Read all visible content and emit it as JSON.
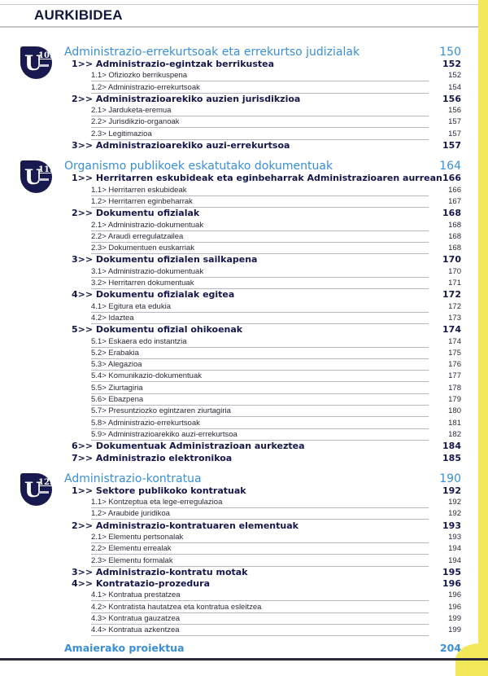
{
  "header": {
    "title": "AURKIBIDEA"
  },
  "colors": {
    "accent": "#3a8fd8",
    "navy": "#17194f",
    "yellow": "#f2e85a"
  },
  "units": [
    {
      "badge": {
        "letter": "U",
        "number": "10."
      },
      "title": "Administrazio-errekurtsoak eta errekurtso judizialak",
      "page": "150",
      "entries": [
        {
          "level": 1,
          "label": "1>> Administrazio-egintzak berrikustea",
          "page": "152"
        },
        {
          "level": 2,
          "label": "1.1> Ofiziozko berrikuspena",
          "page": "152"
        },
        {
          "level": 2,
          "label": "1.2> Administrazio-errekurtsoak",
          "page": "154"
        },
        {
          "level": 1,
          "label": "2>> Administrazioarekiko auzien jurisdikzioa",
          "page": "156"
        },
        {
          "level": 2,
          "label": "2.1> Jarduketa-eremua",
          "page": "156"
        },
        {
          "level": 2,
          "label": "2.2> Jurisdikzio-organoak",
          "page": "157"
        },
        {
          "level": 2,
          "label": "2.3> Legitimazioa",
          "page": "157"
        },
        {
          "level": 1,
          "label": "3>> Administrazioarekiko auzi-errekurtsoa",
          "page": "157"
        }
      ]
    },
    {
      "badge": {
        "letter": "U",
        "number": "11."
      },
      "title": "Organismo publikoek eskatutako dokumentuak",
      "page": "164",
      "entries": [
        {
          "level": 1,
          "label": "1>> Herritarren eskubideak eta eginbeharrak Administrazioaren aurrean",
          "page": "166"
        },
        {
          "level": 2,
          "label": "1.1> Herritarren eskubideak",
          "page": "166"
        },
        {
          "level": 2,
          "label": "1.2> Herritarren eginbeharrak",
          "page": "167"
        },
        {
          "level": 1,
          "label": "2>> Dokumentu ofizialak",
          "page": "168"
        },
        {
          "level": 2,
          "label": "2.1> Administrazio-dokumentuak",
          "page": "168"
        },
        {
          "level": 2,
          "label": "2.2> Araudi erregulatzailea",
          "page": "168"
        },
        {
          "level": 2,
          "label": "2.3> Dokumentuen euskarriak",
          "page": "168"
        },
        {
          "level": 1,
          "label": "3>> Dokumentu ofizialen sailkapena",
          "page": "170"
        },
        {
          "level": 2,
          "label": "3.1> Administrazio-dokumentuak",
          "page": "170"
        },
        {
          "level": 2,
          "label": "3.2> Herritarren dokumentuak",
          "page": "171"
        },
        {
          "level": 1,
          "label": "4>> Dokumentu ofizialak egitea",
          "page": "172"
        },
        {
          "level": 2,
          "label": "4.1> Egitura eta edukia",
          "page": "172"
        },
        {
          "level": 2,
          "label": "4.2> Idaztea",
          "page": "173"
        },
        {
          "level": 1,
          "label": "5>> Dokumentu ofizial ohikoenak",
          "page": "174"
        },
        {
          "level": 2,
          "label": "5.1> Eskaera edo instantzia",
          "page": "174"
        },
        {
          "level": 2,
          "label": "5.2> Erabakia",
          "page": "175"
        },
        {
          "level": 2,
          "label": "5.3> Alegazioa",
          "page": "176"
        },
        {
          "level": 2,
          "label": "5.4> Komunikazio-dokumentuak",
          "page": "177"
        },
        {
          "level": 2,
          "label": "5.5> Ziurtagiria",
          "page": "178"
        },
        {
          "level": 2,
          "label": "5.6> Ebazpena",
          "page": "179"
        },
        {
          "level": 2,
          "label": "5.7> Presuntziozko egintzaren ziurtagiria",
          "page": "180"
        },
        {
          "level": 2,
          "label": "5.8> Administrazio-errekurtsoak",
          "page": "181"
        },
        {
          "level": 2,
          "label": "5.9> Administrazioarekiko auzi-errekurtsoa",
          "page": "182"
        },
        {
          "level": 1,
          "label": "6>> Dokumentuak Administrazioan aurkeztea",
          "page": "184"
        },
        {
          "level": 1,
          "label": "7>> Administrazio elektronikoa",
          "page": "185"
        }
      ]
    },
    {
      "badge": {
        "letter": "U",
        "number": "12."
      },
      "title": "Administrazio-kontratua",
      "page": "190",
      "entries": [
        {
          "level": 1,
          "label": "1>> Sektore publikoko kontratuak",
          "page": "192"
        },
        {
          "level": 2,
          "label": "1.1> Kontzeptua eta lege-erregulazioa",
          "page": "192"
        },
        {
          "level": 2,
          "label": "1.2> Araubide juridikoa",
          "page": "192"
        },
        {
          "level": 1,
          "label": "2>> Administrazio-kontratuaren elementuak",
          "page": "193"
        },
        {
          "level": 2,
          "label": "2.1> Elementu pertsonalak",
          "page": "193"
        },
        {
          "level": 2,
          "label": "2.2> Elementu errealak",
          "page": "194"
        },
        {
          "level": 2,
          "label": "2.3> Elementu formalak",
          "page": "194"
        },
        {
          "level": 1,
          "label": "3>> Administrazio-kontratu motak",
          "page": "195"
        },
        {
          "level": 1,
          "label": "4>> Kontratazio-prozedura",
          "page": "196"
        },
        {
          "level": 2,
          "label": "4.1> Kontratua prestatzea",
          "page": "196"
        },
        {
          "level": 2,
          "label": "4.2> Kontratista hautatzea eta kontratua esleitzea",
          "page": "196"
        },
        {
          "level": 2,
          "label": "4.3> Kontratua gauzatzea",
          "page": "199"
        },
        {
          "level": 2,
          "label": "4.4> Kontratua azkentzea",
          "page": "199"
        }
      ]
    }
  ],
  "final": {
    "title": "Amaierako proiektua",
    "page": "204"
  }
}
